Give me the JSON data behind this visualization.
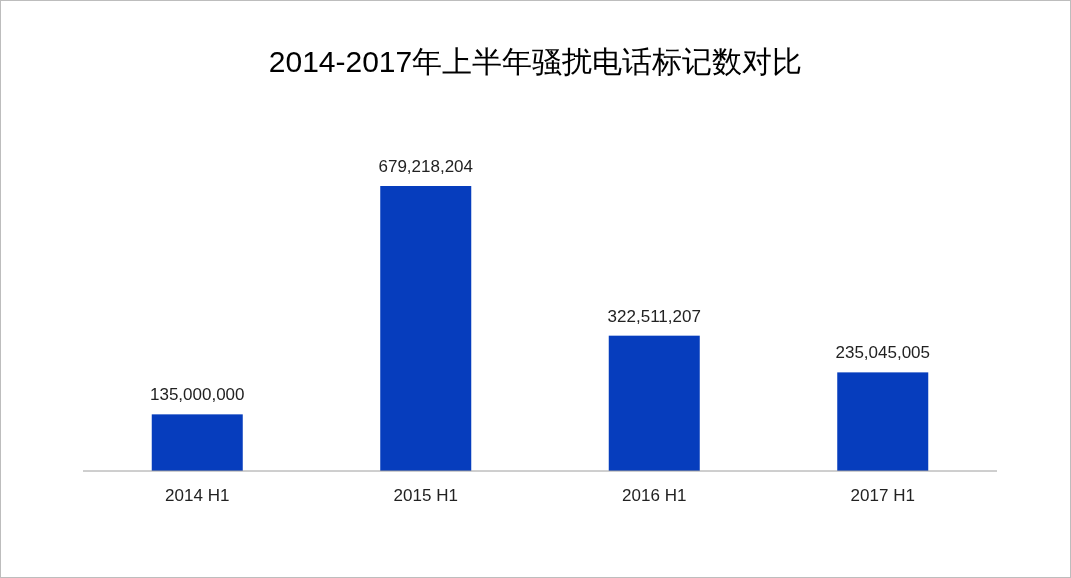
{
  "chart_data": {
    "type": "bar",
    "title": "2014-2017年上半年骚扰电话标记数对比",
    "categories": [
      "2014 H1",
      "2015 H1",
      "2016 H1",
      "2017 H1"
    ],
    "values": [
      135000000,
      679218204,
      322511207,
      235045005
    ],
    "color": "#063dbd",
    "value_labels": [
      "135,000,000",
      "679,218,204",
      "322,511,207",
      "235,045,005"
    ]
  }
}
